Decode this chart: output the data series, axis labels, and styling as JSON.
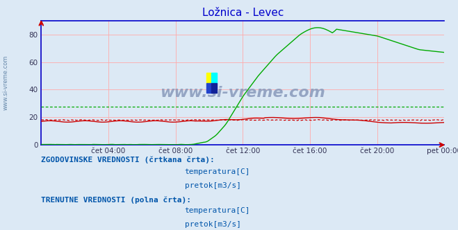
{
  "title": "Ložnica - Levec",
  "title_color": "#0000cc",
  "bg_color": "#dce9f5",
  "plot_bg_color": "#dce9f5",
  "ylim": [
    0,
    90
  ],
  "yticks": [
    0,
    20,
    40,
    60,
    80
  ],
  "xlim": [
    0,
    288
  ],
  "xtick_positions": [
    48,
    96,
    144,
    192,
    240,
    288
  ],
  "xtick_labels": [
    "čet 04:00",
    "čet 08:00",
    "čet 12:00",
    "čet 16:00",
    "čet 20:00",
    "pet 00:00"
  ],
  "vgrid_positions": [
    0,
    48,
    96,
    144,
    192,
    240,
    288
  ],
  "grid_color": "#ffaaaa",
  "hgrid_color": "#ffaaaa",
  "temp_color": "#cc0000",
  "flow_color": "#00aa00",
  "spine_color": "#0000cc",
  "arrow_color": "#cc0000",
  "watermark_text": "www.si-vreme.com",
  "watermark_color": "#8899bb",
  "left_label": "www.si-vreme.com",
  "left_label_color": "#6688aa",
  "legend_text_color": "#0055aa",
  "leg1_header": "ZGODOVINSKE VREDNOSTI (črtkana črta):",
  "leg2_header": "TRENUTNE VREDNOSTI (polna črta):",
  "leg_item1": "temperatura[C]",
  "leg_item2": "pretok[m3/s]",
  "temp_hist_value": 18.0,
  "flow_hist_value": 27.5,
  "n_points": 289
}
